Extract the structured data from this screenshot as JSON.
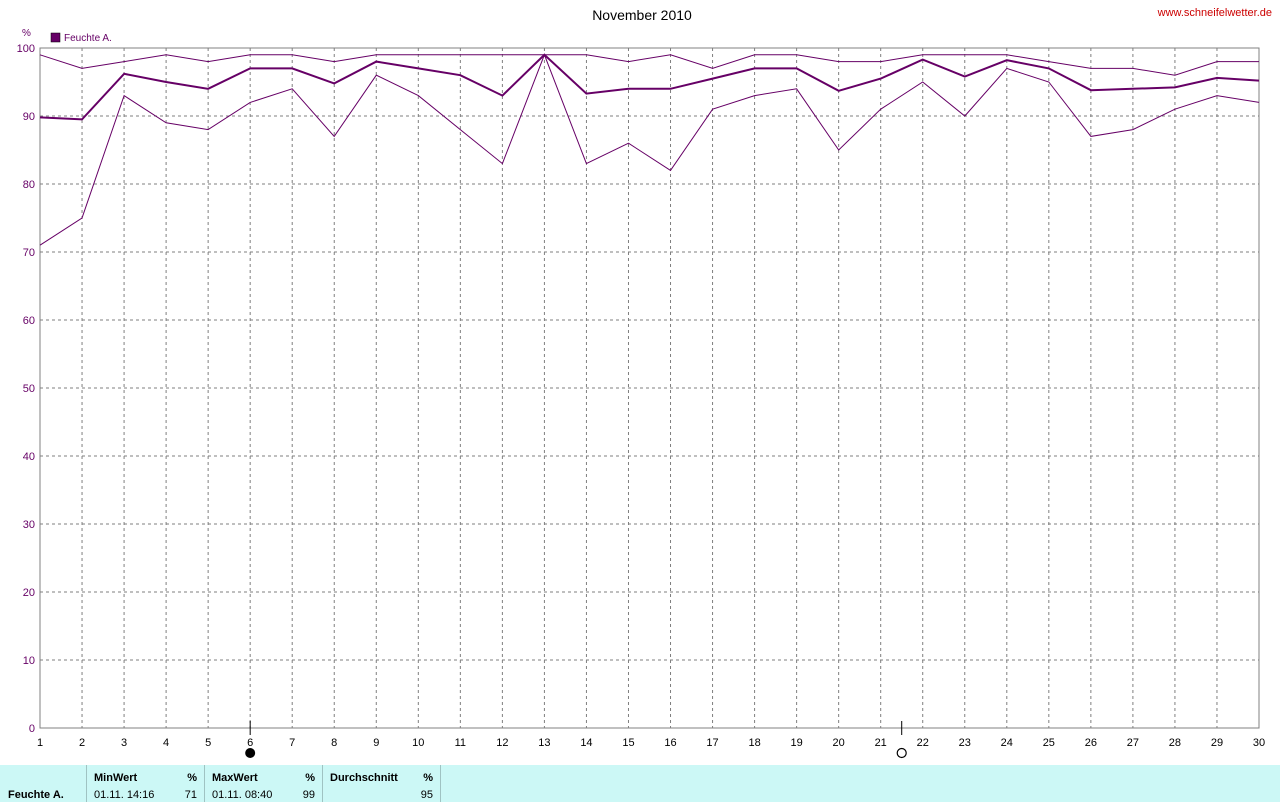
{
  "header": {
    "title": "November 2010",
    "site": "www.schneifelwetter.de",
    "unit": "%",
    "legend_label": "Feuchte A."
  },
  "colors": {
    "series": "#660066",
    "grid": "#7f7f7f",
    "stats_bg": "#ccf8f6"
  },
  "moon_phases": [
    {
      "day": 6,
      "type": "new-moon"
    },
    {
      "day": 21.5,
      "type": "full-moon"
    }
  ],
  "chart_data": {
    "type": "line",
    "title": "November 2010",
    "xlabel": "",
    "ylabel": "%",
    "x": [
      1,
      2,
      3,
      4,
      5,
      6,
      7,
      8,
      9,
      10,
      11,
      12,
      13,
      14,
      15,
      16,
      17,
      18,
      19,
      20,
      21,
      22,
      23,
      24,
      25,
      26,
      27,
      28,
      29,
      30
    ],
    "xlim": [
      1,
      30
    ],
    "ylim": [
      0,
      100
    ],
    "yticks": [
      0,
      10,
      20,
      30,
      40,
      50,
      60,
      70,
      80,
      90,
      100
    ],
    "grid": true,
    "legend": "top-left",
    "series": [
      {
        "role": "max",
        "values": [
          99,
          97,
          98,
          99,
          98,
          99,
          99,
          98,
          99,
          99,
          99,
          99,
          99,
          99,
          98,
          99,
          97,
          99,
          99,
          98,
          98,
          99,
          99,
          99,
          98,
          97,
          97,
          96,
          98,
          98
        ]
      },
      {
        "role": "avg",
        "values": [
          89.8,
          89.5,
          96.2,
          95,
          94,
          97,
          97,
          94.8,
          98,
          97,
          96,
          93,
          99,
          93.3,
          94,
          94,
          95.5,
          97,
          97,
          93.7,
          95.5,
          98.3,
          95.8,
          98.2,
          97,
          93.8,
          94,
          94.2,
          95.6,
          95.2
        ]
      },
      {
        "role": "min",
        "values": [
          71,
          75,
          93,
          89,
          88,
          92,
          94,
          87,
          96,
          93,
          88,
          83,
          99,
          83,
          86,
          82,
          91,
          93,
          94,
          85,
          91,
          95,
          90,
          97,
          95,
          87,
          88,
          91,
          93,
          92
        ]
      }
    ]
  },
  "stats": {
    "series_label": "Feuchte A.",
    "min": {
      "header": "MinWert",
      "unit": "%",
      "datetime": "01.11.  14:16",
      "value": "71"
    },
    "max": {
      "header": "MaxWert",
      "unit": "%",
      "datetime": "01.11.  08:40",
      "value": "99"
    },
    "avg": {
      "header": "Durchschnitt",
      "unit": "%",
      "value": "95"
    }
  }
}
